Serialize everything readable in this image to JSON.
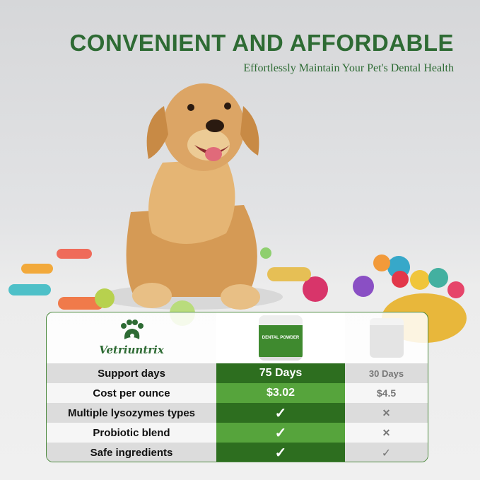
{
  "headline": "CONVENIENT AND AFFORDABLE",
  "subheadline": "Effortlessly Maintain Your Pet's Dental Health",
  "brand": {
    "name": "Vetriuntrix",
    "icon": "paw-icon"
  },
  "product_label": "DENTAL POWDER",
  "colors": {
    "brand_green": "#2e6b34",
    "dark_row": "#2d6e1f",
    "light_row": "#56a43c"
  },
  "comparison": {
    "rows": [
      {
        "label": "Support days",
        "ours": "75 Days",
        "other": "30 Days"
      },
      {
        "label": "Cost per ounce",
        "ours": "$3.02",
        "other": "$4.5"
      },
      {
        "label": "Multiple lysozymes types",
        "ours": "✓",
        "other": "✕"
      },
      {
        "label": "Probiotic blend",
        "ours": "✓",
        "other": "✕"
      },
      {
        "label": "Safe ingredients",
        "ours": "✓",
        "other": "✓"
      }
    ]
  }
}
